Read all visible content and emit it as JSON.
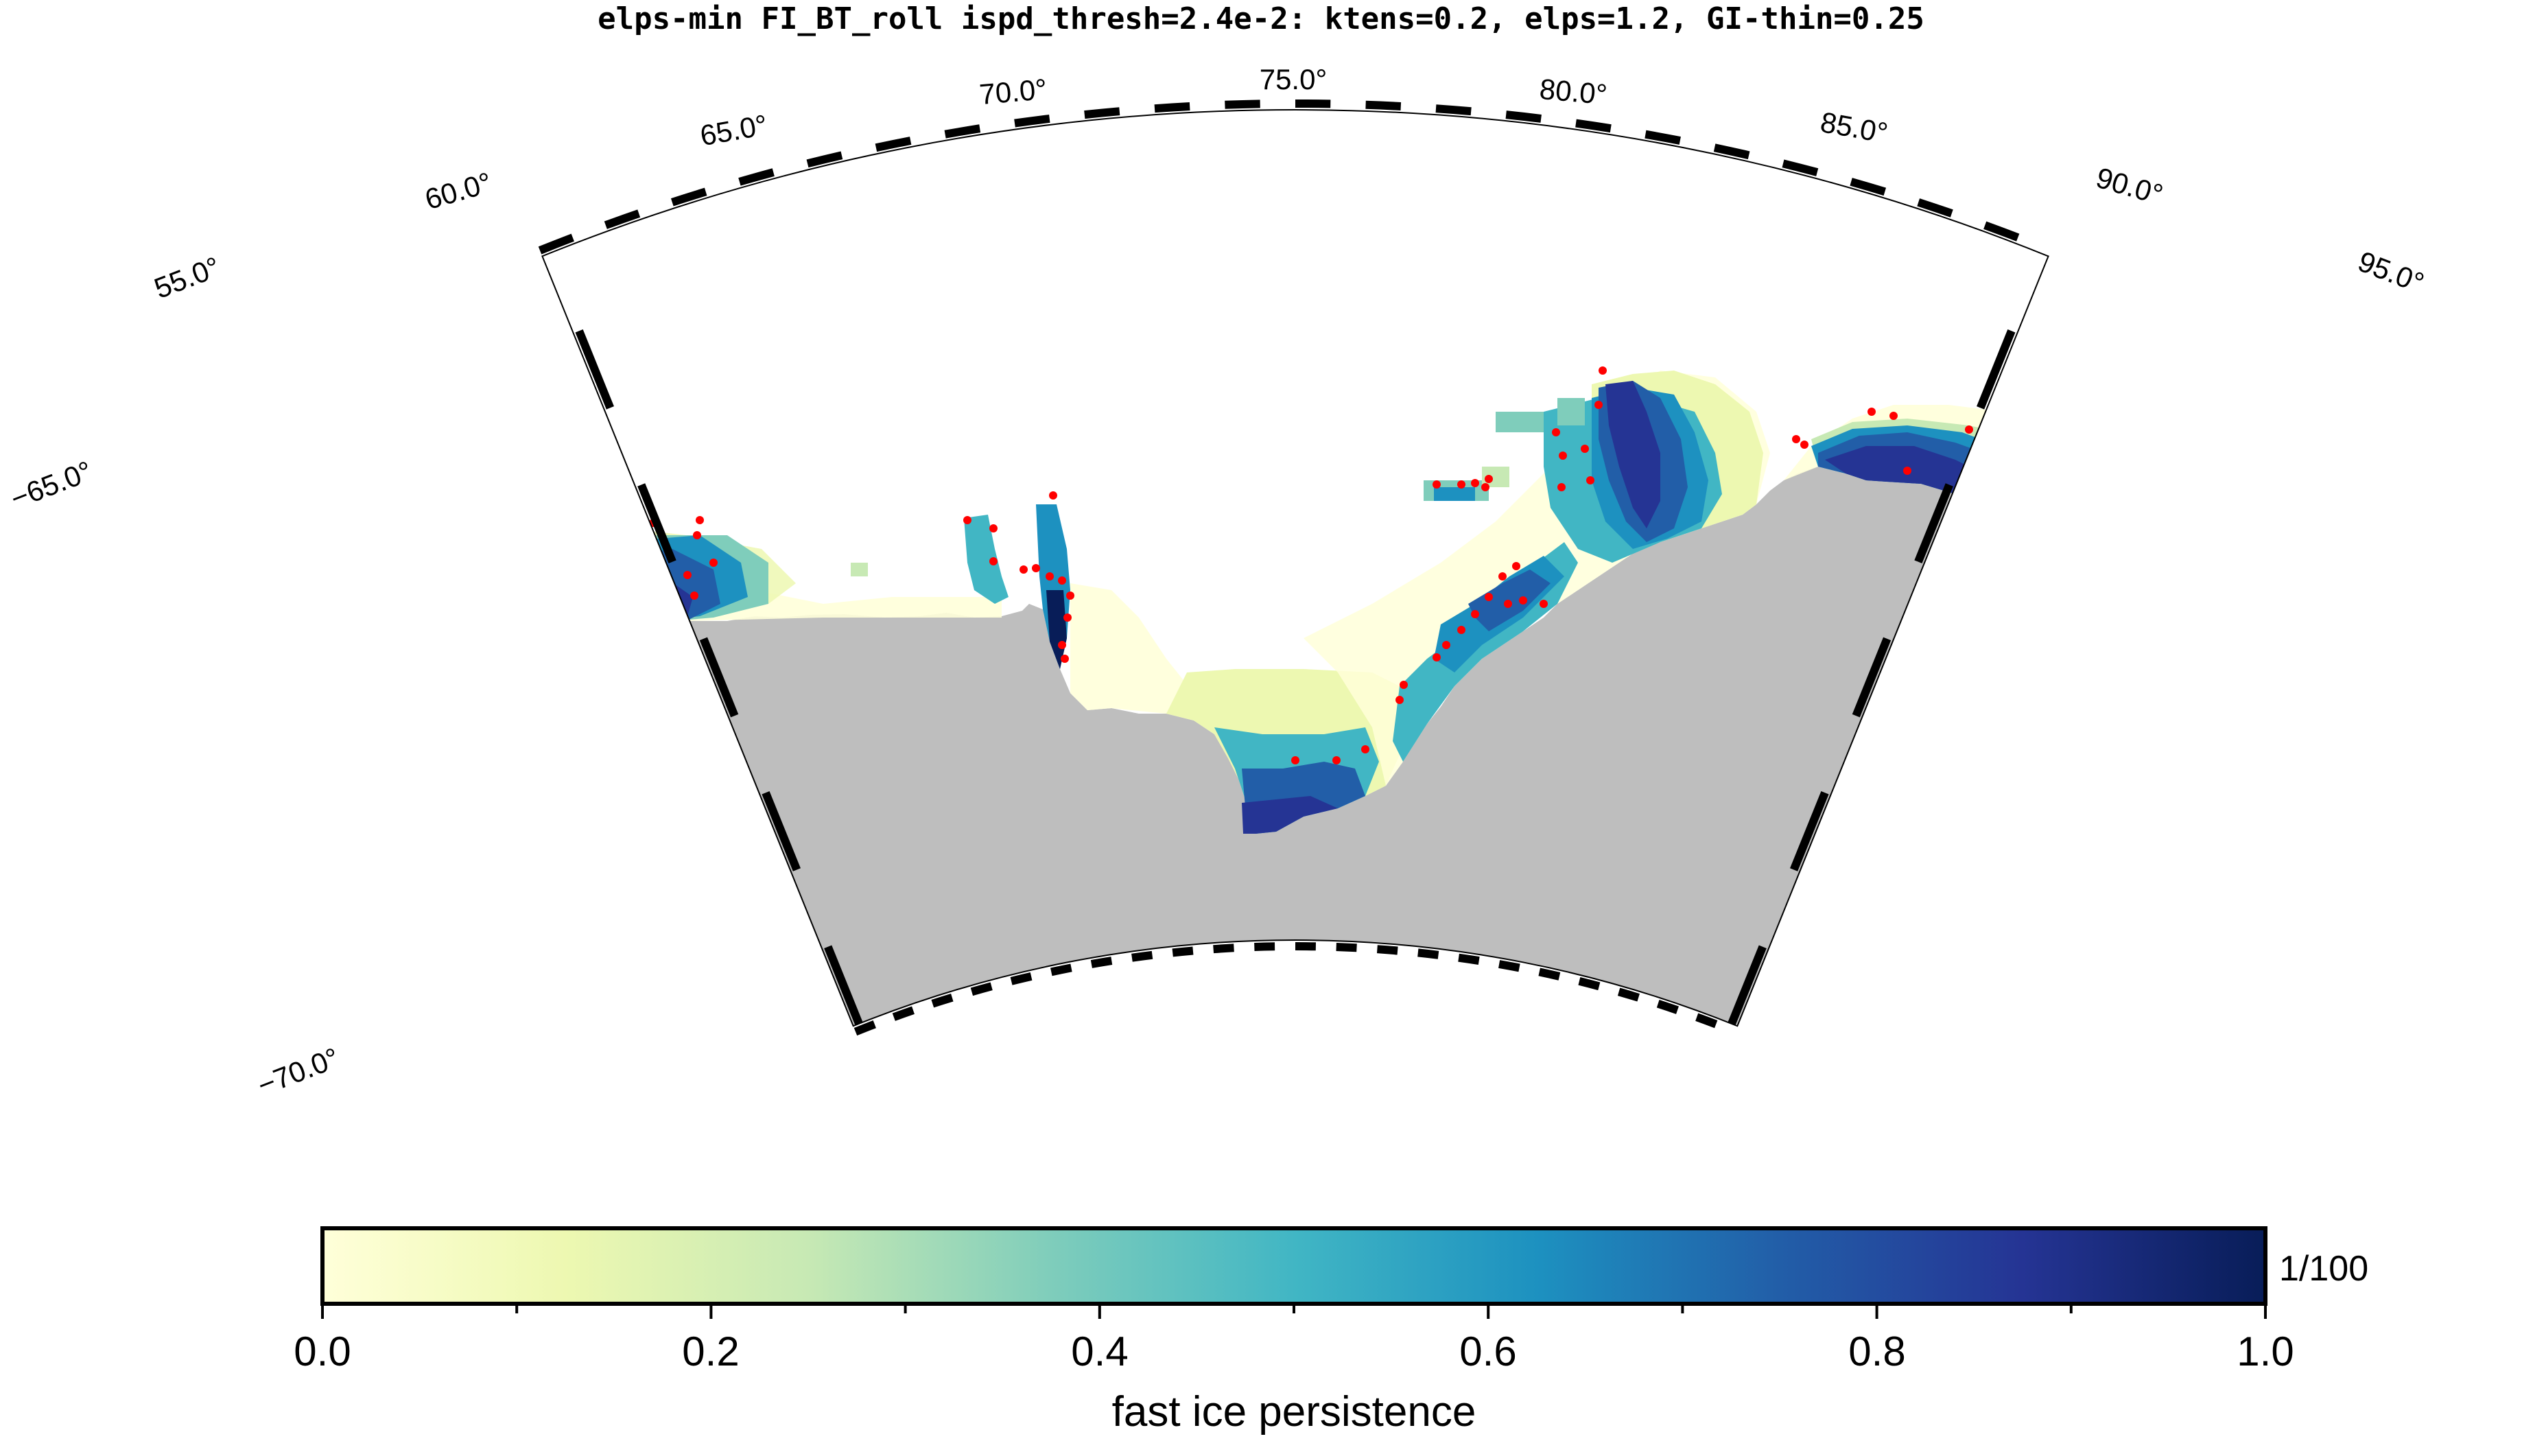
{
  "title": "elps-min FI_BT_roll ispd_thresh=2.4e-2: ktens=0.2, elps=1.2, GI-thin=0.25",
  "map": {
    "projection": "polar conic sector",
    "longitude_labels": [
      "55.0°",
      "60.0°",
      "65.0°",
      "70.0°",
      "75.0°",
      "80.0°",
      "85.0°",
      "90.0°",
      "95.0°"
    ],
    "latitude_labels": [
      "−65.0°",
      "−70.0°"
    ],
    "lon_range": [
      50,
      101
    ],
    "lat_range": [
      -70.8,
      -62.9
    ],
    "land_color": "#bebebe",
    "marker_color": "#ff0000",
    "marker_meaning": "grounded iceberg points"
  },
  "colorbar": {
    "label": "fast ice persistence",
    "unit_label": "1/100",
    "tick_labels": [
      "0.0",
      "0.2",
      "0.4",
      "0.6",
      "0.8",
      "1.0"
    ],
    "range": [
      0,
      1
    ],
    "colors": [
      "#ffffd9",
      "#edf8b1",
      "#c7e9b4",
      "#7fcdbb",
      "#41b6c4",
      "#1d91c0",
      "#225ea8",
      "#253494",
      "#081d58"
    ]
  }
}
